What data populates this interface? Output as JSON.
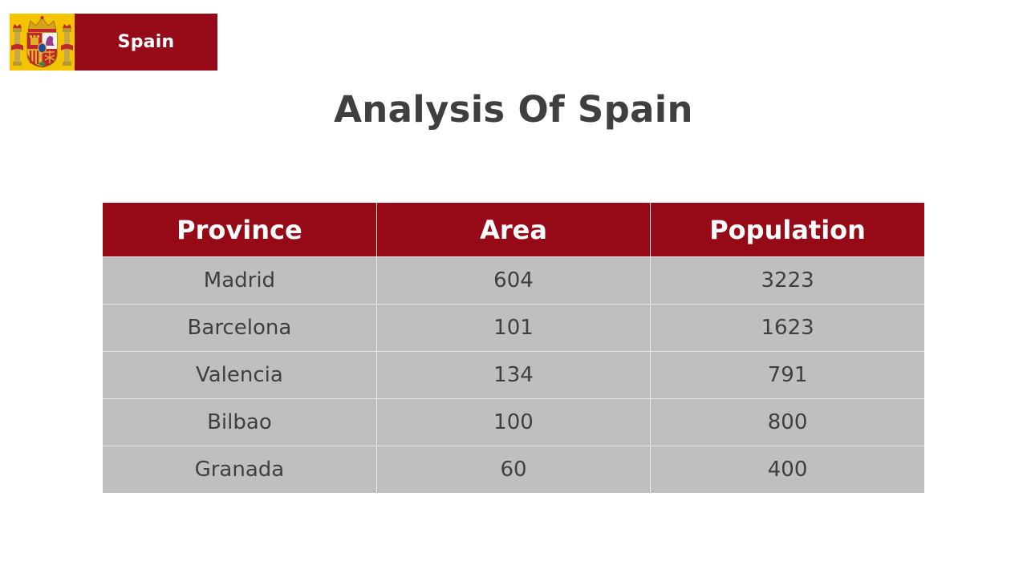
{
  "header": {
    "emblem_icon": "spain-coat-of-arms-icon",
    "label": "Spain"
  },
  "title": "Analysis Of Spain",
  "table": {
    "columns": [
      "Province",
      "Area",
      "Population"
    ],
    "rows": [
      [
        "Madrid",
        "604",
        "3223"
      ],
      [
        "Barcelona",
        "101",
        "1623"
      ],
      [
        "Valencia",
        "134",
        "791"
      ],
      [
        "Bilbao",
        "100",
        "800"
      ],
      [
        "Granada",
        "60",
        "400"
      ]
    ]
  },
  "colors": {
    "accent": "#960916",
    "emblem_background": "#f5c400",
    "table_body": "#bfbfbf",
    "text": "#3f3f3f"
  }
}
